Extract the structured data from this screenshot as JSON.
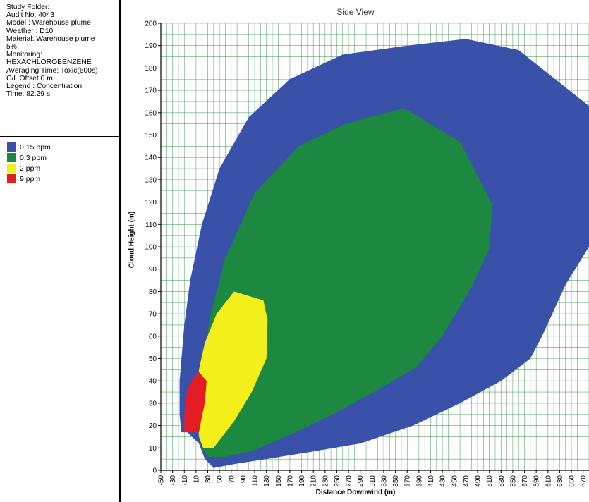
{
  "info": {
    "lines": [
      "Study Folder:",
      "Audit No. 4043",
      "Model : Warehouse plume",
      "Weather : D10",
      "Material: Warehouse plume",
      "5%",
      "Monitoring:",
      "HEXACHLOROBENZENE",
      "Averaging Time: Toxic(600s)",
      "C/L Offset 0 m",
      "Legend : Concentration",
      "Time: 82.29 s"
    ]
  },
  "legend": [
    {
      "label": "0.15 ppm",
      "color": "#3951a9"
    },
    {
      "label": "0.3 ppm",
      "color": "#1c8840"
    },
    {
      "label": "2 ppm",
      "color": "#f2ef1a"
    },
    {
      "label": "9 ppm",
      "color": "#e51c24"
    }
  ],
  "chart_data": {
    "type": "area",
    "title": "Side View",
    "xlabel": "Distance Downwind (m)",
    "ylabel": "Cloud Height (m)",
    "xlim": [
      -50,
      680
    ],
    "ylim": [
      0,
      200
    ],
    "x_ticks": [
      -50,
      -30,
      -10,
      10,
      30,
      50,
      70,
      90,
      110,
      130,
      150,
      170,
      190,
      210,
      230,
      250,
      270,
      290,
      310,
      330,
      350,
      370,
      390,
      410,
      430,
      450,
      470,
      490,
      510,
      530,
      550,
      570,
      590,
      610,
      630,
      650,
      670
    ],
    "y_ticks": [
      0,
      10,
      20,
      30,
      40,
      50,
      60,
      70,
      80,
      90,
      100,
      110,
      120,
      130,
      140,
      150,
      160,
      170,
      180,
      190,
      200
    ],
    "grid": true,
    "series": [
      {
        "name": "0.15 ppm",
        "color": "#3951a9",
        "points": [
          [
            -15,
            17
          ],
          [
            -18,
            25
          ],
          [
            -18,
            40
          ],
          [
            -10,
            65
          ],
          [
            0,
            85
          ],
          [
            20,
            110
          ],
          [
            50,
            135
          ],
          [
            100,
            158
          ],
          [
            170,
            175
          ],
          [
            260,
            186
          ],
          [
            370,
            190
          ],
          [
            470,
            193
          ],
          [
            560,
            188
          ],
          [
            680,
            163
          ],
          [
            680,
            100
          ],
          [
            640,
            83
          ],
          [
            600,
            60
          ],
          [
            580,
            50
          ],
          [
            530,
            40
          ],
          [
            460,
            30
          ],
          [
            380,
            20
          ],
          [
            290,
            12
          ],
          [
            200,
            8
          ],
          [
            130,
            5
          ],
          [
            80,
            3
          ],
          [
            40,
            1
          ],
          [
            25,
            5
          ],
          [
            15,
            12
          ],
          [
            -5,
            17
          ]
        ]
      },
      {
        "name": "0.3 ppm",
        "color": "#1c8840",
        "points": [
          [
            20,
            10
          ],
          [
            15,
            20
          ],
          [
            20,
            45
          ],
          [
            35,
            70
          ],
          [
            60,
            95
          ],
          [
            110,
            124
          ],
          [
            185,
            145
          ],
          [
            265,
            155
          ],
          [
            365,
            162
          ],
          [
            460,
            147
          ],
          [
            515,
            119
          ],
          [
            510,
            99
          ],
          [
            480,
            82
          ],
          [
            430,
            60
          ],
          [
            385,
            46
          ],
          [
            320,
            36
          ],
          [
            250,
            26
          ],
          [
            180,
            17
          ],
          [
            110,
            9
          ],
          [
            60,
            6
          ],
          [
            30,
            6
          ]
        ]
      },
      {
        "name": "2 ppm",
        "color": "#f2ef1a",
        "points": [
          [
            22,
            10
          ],
          [
            15,
            15
          ],
          [
            12,
            30
          ],
          [
            15,
            45
          ],
          [
            25,
            57
          ],
          [
            45,
            70
          ],
          [
            75,
            80
          ],
          [
            125,
            76
          ],
          [
            132,
            67
          ],
          [
            130,
            50
          ],
          [
            105,
            35
          ],
          [
            75,
            22
          ],
          [
            40,
            10
          ]
        ]
      },
      {
        "name": "9 ppm",
        "color": "#e51c24",
        "points": [
          [
            -10,
            17
          ],
          [
            -10,
            25
          ],
          [
            -5,
            36
          ],
          [
            5,
            41
          ],
          [
            15,
            44
          ],
          [
            28,
            40
          ],
          [
            25,
            30
          ],
          [
            20,
            24
          ],
          [
            15,
            17
          ]
        ]
      }
    ]
  }
}
